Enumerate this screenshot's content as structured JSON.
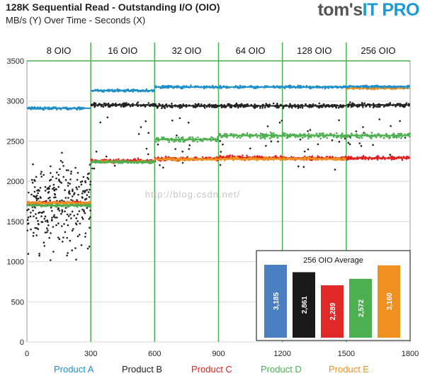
{
  "header": {
    "title": "128K Sequential Read - Outstanding I/O (OIO)",
    "subtitle": "MB/s (Y) Over Time - Seconds (X)",
    "brand_part1": "tom's",
    "brand_part2": "IT PRO"
  },
  "watermark": "http://blog.csdn.net/",
  "chart_data": [
    {
      "type": "scatter",
      "title": "128K Sequential Read - Outstanding I/O (OIO)",
      "xlabel": "",
      "ylabel": "",
      "xlim": [
        0,
        1800
      ],
      "ylim": [
        0,
        3500
      ],
      "x_ticks": [
        0,
        300,
        600,
        900,
        1200,
        1500,
        1800
      ],
      "y_ticks": [
        0,
        500,
        1000,
        1500,
        2000,
        2500,
        3000,
        3500
      ],
      "grid": true,
      "legend_position": "bottom",
      "phases": [
        {
          "label": "8 OIO",
          "start": 0,
          "end": 300
        },
        {
          "label": "16 OIO",
          "start": 300,
          "end": 600
        },
        {
          "label": "32  OIO",
          "start": 600,
          "end": 900
        },
        {
          "label": "64 OIO",
          "start": 900,
          "end": 1200
        },
        {
          "label": "128 OIO",
          "start": 1200,
          "end": 1500
        },
        {
          "label": "256 OIO",
          "start": 1500,
          "end": 1800
        }
      ],
      "series": [
        {
          "name": "Product  A",
          "color": "#1f8fc8",
          "levels": [
            2910,
            3130,
            3175,
            3175,
            3175,
            3180
          ]
        },
        {
          "name": "Product  B",
          "color": "#222222",
          "levels": [
            1700,
            2950,
            2940,
            2940,
            2940,
            2950
          ]
        },
        {
          "name": "Product  C",
          "color": "#e02020",
          "levels": [
            1735,
            2255,
            2280,
            2295,
            2290,
            2290
          ]
        },
        {
          "name": "Product  D",
          "color": "#4caf50",
          "levels": [
            1700,
            2240,
            2520,
            2570,
            2570,
            2570
          ]
        },
        {
          "name": "Product  E",
          "color": "#f0901e",
          "levels": [
            1730,
            2245,
            2275,
            2280,
            2280,
            3160
          ]
        }
      ]
    },
    {
      "type": "bar",
      "title": "256 OIO Average",
      "categories": [
        "Product  A",
        "Product  B",
        "Product  C",
        "Product  D",
        "Product  E"
      ],
      "values": [
        3185,
        2861,
        2289,
        2572,
        3160
      ],
      "value_labels": [
        "3,185",
        "2,861",
        "2,289",
        "2,572",
        "3,160"
      ],
      "colors": [
        "#4a7fc1",
        "#1a1a1a",
        "#e02828",
        "#4cb050",
        "#f0901e"
      ]
    }
  ]
}
